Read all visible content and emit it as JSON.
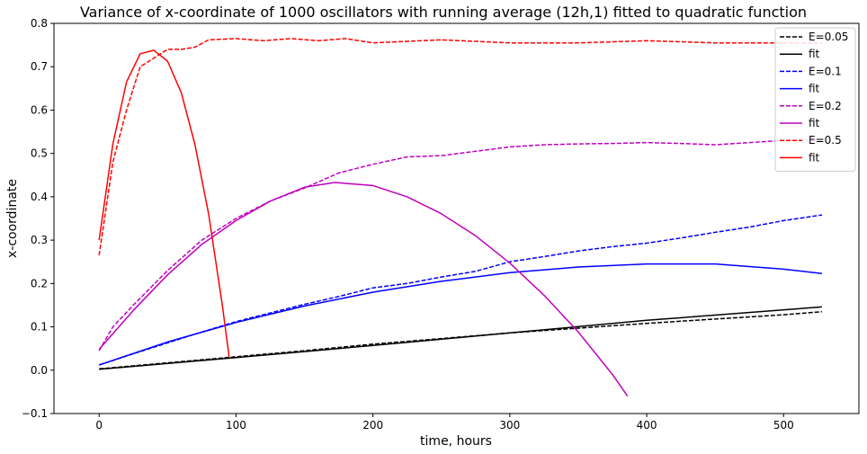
{
  "chart_data": {
    "type": "line",
    "title": "Variance of x-coordinate of 1000 oscillators with running average (12h,1) fitted to quadratic function",
    "xlabel": "time, hours",
    "ylabel": "x-coordinate",
    "xlim": [
      -33,
      555
    ],
    "ylim": [
      -0.1,
      0.8
    ],
    "xticks": [
      0,
      100,
      200,
      300,
      400,
      500
    ],
    "yticks": [
      -0.1,
      0.0,
      0.1,
      0.2,
      0.3,
      0.4,
      0.5,
      0.6,
      0.7,
      0.8
    ],
    "xtick_labels": [
      "0",
      "100",
      "200",
      "300",
      "400",
      "500"
    ],
    "ytick_labels": [
      "−0.1",
      "0.0",
      "0.1",
      "0.2",
      "0.3",
      "0.4",
      "0.5",
      "0.6",
      "0.7",
      "0.8"
    ],
    "grid": false,
    "legend_position": "top-right",
    "series": [
      {
        "name": "E=0.05",
        "style": "dashed",
        "color": "#000000",
        "x": [
          0,
          50,
          100,
          150,
          200,
          250,
          300,
          350,
          400,
          450,
          500,
          528
        ],
        "y": [
          0.003,
          0.017,
          0.031,
          0.045,
          0.06,
          0.073,
          0.086,
          0.097,
          0.108,
          0.118,
          0.128,
          0.135
        ]
      },
      {
        "name": "fit",
        "style": "solid",
        "color": "#000000",
        "x": [
          0,
          100,
          200,
          300,
          400,
          528
        ],
        "y": [
          0.002,
          0.029,
          0.057,
          0.086,
          0.115,
          0.146
        ]
      },
      {
        "name": "E=0.1",
        "style": "dashed",
        "color": "#0000ff",
        "x": [
          0,
          25,
          50,
          75,
          100,
          125,
          150,
          175,
          200,
          225,
          250,
          275,
          300,
          325,
          350,
          375,
          400,
          425,
          450,
          475,
          500,
          528
        ],
        "y": [
          0.012,
          0.038,
          0.063,
          0.088,
          0.112,
          0.132,
          0.152,
          0.17,
          0.19,
          0.2,
          0.215,
          0.228,
          0.25,
          0.262,
          0.275,
          0.285,
          0.293,
          0.305,
          0.318,
          0.33,
          0.345,
          0.358
        ]
      },
      {
        "name": "fit",
        "style": "solid",
        "color": "#0000ff",
        "x": [
          0,
          50,
          100,
          150,
          200,
          250,
          300,
          350,
          400,
          450,
          500,
          528
        ],
        "y": [
          0.012,
          0.065,
          0.11,
          0.148,
          0.18,
          0.205,
          0.225,
          0.238,
          0.245,
          0.245,
          0.233,
          0.223
        ]
      },
      {
        "name": "E=0.2",
        "style": "dashed",
        "color": "#bf00bf",
        "x": [
          0,
          10,
          25,
          50,
          75,
          100,
          125,
          150,
          175,
          200,
          225,
          250,
          275,
          300,
          325,
          350,
          375,
          400,
          425,
          450,
          475,
          500,
          528
        ],
        "y": [
          0.045,
          0.1,
          0.15,
          0.23,
          0.3,
          0.35,
          0.39,
          0.42,
          0.455,
          0.475,
          0.492,
          0.495,
          0.505,
          0.515,
          0.52,
          0.522,
          0.523,
          0.525,
          0.523,
          0.52,
          0.525,
          0.53,
          0.53
        ]
      },
      {
        "name": "fit",
        "style": "solid",
        "color": "#bf00bf",
        "x": [
          0,
          25,
          50,
          75,
          100,
          125,
          150,
          172,
          200,
          225,
          250,
          275,
          300,
          325,
          350,
          375,
          386
        ],
        "y": [
          0.048,
          0.138,
          0.22,
          0.29,
          0.345,
          0.39,
          0.422,
          0.433,
          0.426,
          0.4,
          0.361,
          0.31,
          0.247,
          0.173,
          0.088,
          -0.01,
          -0.06
        ]
      },
      {
        "name": "E=0.5",
        "style": "dashed",
        "color": "#ff0000",
        "x": [
          0,
          10,
          20,
          30,
          40,
          50,
          60,
          70,
          80,
          100,
          120,
          140,
          160,
          180,
          200,
          250,
          300,
          350,
          400,
          450,
          500,
          528
        ],
        "y": [
          0.265,
          0.48,
          0.6,
          0.7,
          0.72,
          0.74,
          0.74,
          0.745,
          0.762,
          0.765,
          0.76,
          0.765,
          0.76,
          0.765,
          0.755,
          0.762,
          0.755,
          0.755,
          0.76,
          0.755,
          0.755,
          0.755
        ]
      },
      {
        "name": "fit",
        "style": "solid",
        "color": "#ff0000",
        "x": [
          0,
          10,
          20,
          30,
          40,
          50,
          60,
          70,
          80,
          90,
          95
        ],
        "y": [
          0.3,
          0.522,
          0.665,
          0.73,
          0.738,
          0.713,
          0.64,
          0.52,
          0.36,
          0.15,
          0.03
        ]
      }
    ]
  }
}
